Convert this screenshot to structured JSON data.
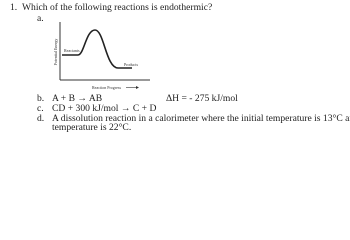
{
  "question": {
    "number": "1.",
    "text": "Which of the following reactions is endothermic?",
    "options": [
      {
        "letter": "a."
      },
      {
        "letter": "b.",
        "text": "A + B → AB",
        "note": "ΔH = - 275 kJ/mol"
      },
      {
        "letter": "c.",
        "text": "CD + 300 kJ/mol → C + D"
      },
      {
        "letter": "d.",
        "text": "A dissolution reaction in a calorimeter where the initial temperature is 13°C and the final",
        "text_line2": "temperature is 22°C."
      }
    ]
  },
  "diagram": {
    "y_label": "Potential Energy",
    "x_label": "Reaction Progress",
    "reactants": "Reactants",
    "products": "Products"
  }
}
